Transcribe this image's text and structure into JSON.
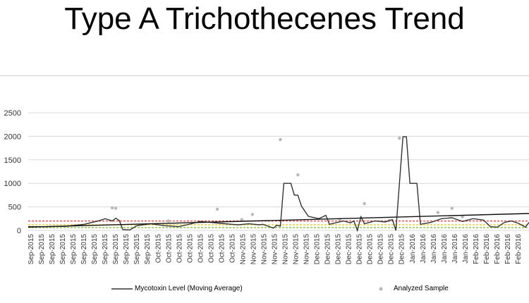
{
  "page": {
    "title": "Type A Trichothecenes Trend"
  },
  "legend": {
    "line_label": "Mycotoxin Level (Moving Average)",
    "point_label": "Analyzed Sample"
  },
  "colors": {
    "line": "#333333",
    "points": "#b8b8b8",
    "trend": "#111111",
    "ref_red": "#e8504f",
    "ref_yellow": "#e6cf3a",
    "ref_green": "#8fc24a",
    "grid": "#d9d9d9"
  },
  "chart_data": {
    "type": "line",
    "title": "Type A Trichothecenes Trend",
    "ylim": [
      0,
      2500
    ],
    "yticks": [
      0,
      500,
      1000,
      1500,
      2000,
      2500
    ],
    "grid": "horizontal",
    "legend_position": "bottom",
    "x_tick_labels": [
      "Sep-2015",
      "Sep-2015",
      "Sep-2015",
      "Sep-2015",
      "Sep-2015",
      "Sep-2015",
      "Sep-2015",
      "Sep-2015",
      "Sep-2015",
      "Sep-2015",
      "Sep-2015",
      "Sep-2015",
      "Oct-2015",
      "Oct-2015",
      "Oct-2015",
      "Oct-2015",
      "Oct-2015",
      "Oct-2015",
      "Oct-2015",
      "Oct-2015",
      "Nov-2015",
      "Nov-2015",
      "Nov-2015",
      "Nov-2015",
      "Nov-2015",
      "Nov-2015",
      "Nov-2015",
      "Dec-2015",
      "Dec-2015",
      "Dec-2015",
      "Dec-2015",
      "Dec-2015",
      "Dec-2015",
      "Dec-2015",
      "Dec-2015",
      "Dec-2015",
      "Jan-2016",
      "Jan-2016",
      "Jan-2016",
      "Jan-2016",
      "Jan-2016",
      "Jan-2016",
      "Feb-2016",
      "Feb-2016",
      "Feb-2016",
      "Feb-2016",
      "Feb-2016"
    ],
    "series": [
      {
        "name": "Mycotoxin Level (Moving Average)",
        "style": "line",
        "points": [
          [
            0,
            80
          ],
          [
            5,
            80
          ],
          [
            11,
            90
          ],
          [
            16,
            130
          ],
          [
            20,
            200
          ],
          [
            22,
            250
          ],
          [
            24,
            200
          ],
          [
            25,
            260
          ],
          [
            26,
            210
          ],
          [
            27,
            20
          ],
          [
            29,
            10
          ],
          [
            31,
            100
          ],
          [
            35,
            140
          ],
          [
            39,
            100
          ],
          [
            43,
            80
          ],
          [
            47,
            150
          ],
          [
            49,
            190
          ],
          [
            52,
            170
          ],
          [
            55,
            150
          ],
          [
            58,
            130
          ],
          [
            60,
            120
          ],
          [
            63,
            140
          ],
          [
            66,
            120
          ],
          [
            67,
            130
          ],
          [
            70,
            50
          ],
          [
            71,
            110
          ],
          [
            72,
            90
          ],
          [
            73,
            1000
          ],
          [
            75,
            1000
          ],
          [
            76,
            750
          ],
          [
            77,
            750
          ],
          [
            78,
            520
          ],
          [
            80,
            300
          ],
          [
            83,
            250
          ],
          [
            85,
            320
          ],
          [
            86,
            130
          ],
          [
            90,
            200
          ],
          [
            92,
            160
          ],
          [
            93,
            200
          ],
          [
            94,
            0
          ],
          [
            95,
            290
          ],
          [
            96,
            140
          ],
          [
            99,
            200
          ],
          [
            102,
            180
          ],
          [
            104,
            230
          ],
          [
            105,
            0
          ],
          [
            106,
            1000
          ],
          [
            107,
            1990
          ],
          [
            108,
            1990
          ],
          [
            109,
            1000
          ],
          [
            111,
            1000
          ],
          [
            112,
            130
          ],
          [
            115,
            170
          ],
          [
            118,
            250
          ],
          [
            121,
            270
          ],
          [
            124,
            190
          ],
          [
            127,
            250
          ],
          [
            130,
            220
          ],
          [
            132,
            80
          ],
          [
            134,
            70
          ],
          [
            136,
            170
          ],
          [
            138,
            200
          ],
          [
            140,
            150
          ],
          [
            142,
            70
          ],
          [
            143,
            170
          ]
        ]
      },
      {
        "name": "Analyzed Sample",
        "style": "scatter",
        "points": [
          [
            24,
            480
          ],
          [
            25,
            470
          ],
          [
            54,
            450
          ],
          [
            61,
            230
          ],
          [
            64,
            340
          ],
          [
            72,
            1930
          ],
          [
            77,
            1180
          ],
          [
            96,
            570
          ],
          [
            106,
            1960
          ],
          [
            117,
            380
          ],
          [
            121,
            470
          ],
          [
            124,
            290
          ],
          [
            103,
            210
          ],
          [
            89,
            230
          ],
          [
            40,
            200
          ]
        ]
      },
      {
        "name": "",
        "style": "trend",
        "points": [
          [
            0,
            70
          ],
          [
            143,
            360
          ]
        ]
      }
    ],
    "reference_lines": [
      {
        "color": "red",
        "y": 200
      },
      {
        "color": "yellow",
        "y": 120
      },
      {
        "color": "green",
        "y": 60
      }
    ],
    "x_index_max": 143
  }
}
